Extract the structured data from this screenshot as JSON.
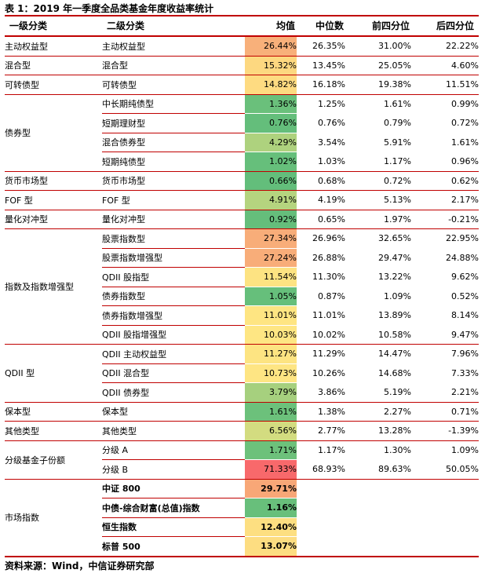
{
  "title": "表 1：2019 年一季度全品类基金年度收益率统计",
  "headers": [
    "一级分类",
    "二级分类",
    "均值",
    "中位数",
    "前四分位",
    "后四分位"
  ],
  "colors": {
    "rule": "#c00000"
  },
  "groups": [
    {
      "l1": "主动权益型",
      "rows": [
        {
          "l2": "主动权益型",
          "mean": "26.44%",
          "color": "#f8b07a",
          "median": "26.35%",
          "q1": "31.00%",
          "q4": "22.22%"
        }
      ]
    },
    {
      "l1": "混合型",
      "rows": [
        {
          "l2": "混合型",
          "mean": "15.32%",
          "color": "#fdd880",
          "median": "13.45%",
          "q1": "25.05%",
          "q4": "4.60%"
        }
      ]
    },
    {
      "l1": "可转债型",
      "rows": [
        {
          "l2": "可转债型",
          "mean": "14.82%",
          "color": "#fedb81",
          "median": "16.18%",
          "q1": "19.38%",
          "q4": "11.51%"
        }
      ]
    },
    {
      "l1": "债券型",
      "rows": [
        {
          "l2": "中长期纯债型",
          "mean": "1.36%",
          "color": "#6ac07b",
          "median": "1.25%",
          "q1": "1.61%",
          "q4": "0.99%"
        },
        {
          "l2": "短期理财型",
          "mean": "0.76%",
          "color": "#64be7b",
          "median": "0.76%",
          "q1": "0.79%",
          "q4": "0.72%"
        },
        {
          "l2": "混合债券型",
          "mean": "4.29%",
          "color": "#aed27e",
          "median": "3.54%",
          "q1": "5.91%",
          "q4": "1.61%"
        },
        {
          "l2": "短期纯债型",
          "mean": "1.02%",
          "color": "#66bf7b",
          "median": "1.03%",
          "q1": "1.17%",
          "q4": "0.96%"
        }
      ]
    },
    {
      "l1": "货币市场型",
      "rows": [
        {
          "l2": "货币市场型",
          "mean": "0.66%",
          "color": "#63be7b",
          "median": "0.68%",
          "q1": "0.72%",
          "q4": "0.62%"
        }
      ]
    },
    {
      "l1": "FOF 型",
      "rows": [
        {
          "l2": "FOF 型",
          "mean": "4.91%",
          "color": "#b5d47f",
          "median": "4.19%",
          "q1": "5.13%",
          "q4": "2.17%"
        }
      ]
    },
    {
      "l1": "量化对冲型",
      "rows": [
        {
          "l2": "量化对冲型",
          "mean": "0.92%",
          "color": "#65be7b",
          "median": "0.65%",
          "q1": "1.97%",
          "q4": "-0.21%"
        }
      ]
    },
    {
      "l1": "指数及指数增强型",
      "rows": [
        {
          "l2": "股票指数型",
          "mean": "27.34%",
          "color": "#f8ad79",
          "median": "26.96%",
          "q1": "32.65%",
          "q4": "22.95%"
        },
        {
          "l2": "股票指数增强型",
          "mean": "27.24%",
          "color": "#f8ad79",
          "median": "26.88%",
          "q1": "29.47%",
          "q4": "24.88%"
        },
        {
          "l2": "QDII 股指型",
          "mean": "11.54%",
          "color": "#fde382",
          "median": "11.30%",
          "q1": "13.22%",
          "q4": "9.62%"
        },
        {
          "l2": "债券指数型",
          "mean": "1.05%",
          "color": "#66bf7b",
          "median": "0.87%",
          "q1": "1.09%",
          "q4": "0.52%"
        },
        {
          "l2": "债券指数增强型",
          "mean": "11.01%",
          "color": "#fee582",
          "median": "11.01%",
          "q1": "13.89%",
          "q4": "8.14%"
        },
        {
          "l2": "QDII 股指增强型",
          "mean": "10.03%",
          "color": "#fee683",
          "median": "10.02%",
          "q1": "10.58%",
          "q4": "9.47%"
        }
      ]
    },
    {
      "l1": "QDII 型",
      "rows": [
        {
          "l2": "QDII 主动权益型",
          "mean": "11.27%",
          "color": "#fde482",
          "median": "11.29%",
          "q1": "14.47%",
          "q4": "7.96%"
        },
        {
          "l2": "QDII 混合型",
          "mean": "10.73%",
          "color": "#fee583",
          "median": "10.26%",
          "q1": "14.68%",
          "q4": "7.33%"
        },
        {
          "l2": "QDII 债券型",
          "mean": "3.79%",
          "color": "#a6d07e",
          "median": "3.86%",
          "q1": "5.19%",
          "q4": "2.21%"
        }
      ]
    },
    {
      "l1": "保本型",
      "rows": [
        {
          "l2": "保本型",
          "mean": "1.61%",
          "color": "#6cc17b",
          "median": "1.38%",
          "q1": "2.27%",
          "q4": "0.71%"
        }
      ]
    },
    {
      "l1": "其他类型",
      "rows": [
        {
          "l2": "其他类型",
          "mean": "6.56%",
          "color": "#d3dc80",
          "median": "2.77%",
          "q1": "13.28%",
          "q4": "-1.39%"
        }
      ]
    },
    {
      "l1": "分级基金子份额",
      "rows": [
        {
          "l2": "分级 A",
          "mean": "1.71%",
          "color": "#6dc17b",
          "median": "1.17%",
          "q1": "1.30%",
          "q4": "1.09%"
        },
        {
          "l2": "分级 B",
          "mean": "71.33%",
          "color": "#f8696b",
          "median": "68.93%",
          "q1": "89.63%",
          "q4": "50.05%"
        }
      ]
    },
    {
      "l1": "市场指数",
      "market": true,
      "rows": [
        {
          "l2": "中证 800",
          "mean": "29.71%",
          "color": "#f8a777",
          "median": "",
          "q1": "",
          "q4": ""
        },
        {
          "l2": "中债-综合财富(总值)指数",
          "mean": "1.16%",
          "color": "#68bf7b",
          "median": "",
          "q1": "",
          "q4": ""
        },
        {
          "l2": "恒生指数",
          "mean": "12.40%",
          "color": "#fddf81",
          "median": "",
          "q1": "",
          "q4": ""
        },
        {
          "l2": "标普 500",
          "mean": "13.07%",
          "color": "#fddd81",
          "median": "",
          "q1": "",
          "q4": ""
        }
      ]
    }
  ],
  "source": "资料来源：Wind，中信证券研究部"
}
